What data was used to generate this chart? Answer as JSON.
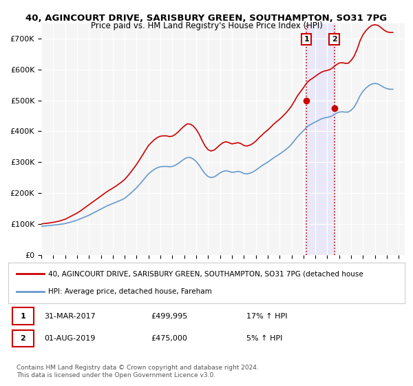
{
  "title": "40, AGINCOURT DRIVE, SARISBURY GREEN, SOUTHAMPTON, SO31 7PG",
  "subtitle": "Price paid vs. HM Land Registry's House Price Index (HPI)",
  "ylabel": "",
  "ylim": [
    0,
    750000
  ],
  "yticks": [
    0,
    100000,
    200000,
    300000,
    400000,
    500000,
    600000,
    700000
  ],
  "ytick_labels": [
    "£0",
    "£100K",
    "£200K",
    "£300K",
    "£400K",
    "£500K",
    "£600K",
    "£700K"
  ],
  "background_color": "#ffffff",
  "plot_bg_color": "#f5f5f5",
  "grid_color": "#ffffff",
  "line1_color": "#cc0000",
  "line2_color": "#6699cc",
  "marker1_color": "#cc0000",
  "marker2_color": "#cc0000",
  "annotation_box_color": "#cc0000",
  "purchase1_date_label": "1",
  "purchase1_year": 2017.25,
  "purchase1_price": 499995,
  "purchase2_date_label": "2",
  "purchase2_year": 2019.58,
  "purchase2_price": 475000,
  "legend_line1": "40, AGINCOURT DRIVE, SARISBURY GREEN, SOUTHAMPTON, SO31 7PG (detached house",
  "legend_line2": "HPI: Average price, detached house, Fareham",
  "table_row1": "1    31-MAR-2017         £499,995        17% ↑ HPI",
  "table_row2": "2    01-AUG-2019         £475,000          5% ↑ HPI",
  "footer": "Contains HM Land Registry data © Crown copyright and database right 2024.\nThis data is licensed under the Open Government Licence v3.0.",
  "xmin": 1995.0,
  "xmax": 2025.5,
  "xtick_years": [
    1995,
    1996,
    1997,
    1998,
    1999,
    2000,
    2001,
    2002,
    2003,
    2004,
    2005,
    2006,
    2007,
    2008,
    2009,
    2010,
    2011,
    2012,
    2013,
    2014,
    2015,
    2016,
    2017,
    2018,
    2019,
    2020,
    2021,
    2022,
    2023,
    2024,
    2025
  ],
  "hpi_years": [
    1995.0,
    1995.25,
    1995.5,
    1995.75,
    1996.0,
    1996.25,
    1996.5,
    1996.75,
    1997.0,
    1997.25,
    1997.5,
    1997.75,
    1998.0,
    1998.25,
    1998.5,
    1998.75,
    1999.0,
    1999.25,
    1999.5,
    1999.75,
    2000.0,
    2000.25,
    2000.5,
    2000.75,
    2001.0,
    2001.25,
    2001.5,
    2001.75,
    2002.0,
    2002.25,
    2002.5,
    2002.75,
    2003.0,
    2003.25,
    2003.5,
    2003.75,
    2004.0,
    2004.25,
    2004.5,
    2004.75,
    2005.0,
    2005.25,
    2005.5,
    2005.75,
    2006.0,
    2006.25,
    2006.5,
    2006.75,
    2007.0,
    2007.25,
    2007.5,
    2007.75,
    2008.0,
    2008.25,
    2008.5,
    2008.75,
    2009.0,
    2009.25,
    2009.5,
    2009.75,
    2010.0,
    2010.25,
    2010.5,
    2010.75,
    2011.0,
    2011.25,
    2011.5,
    2011.75,
    2012.0,
    2012.25,
    2012.5,
    2012.75,
    2013.0,
    2013.25,
    2013.5,
    2013.75,
    2014.0,
    2014.25,
    2014.5,
    2014.75,
    2015.0,
    2015.25,
    2015.5,
    2015.75,
    2016.0,
    2016.25,
    2016.5,
    2016.75,
    2017.0,
    2017.25,
    2017.5,
    2017.75,
    2018.0,
    2018.25,
    2018.5,
    2018.75,
    2019.0,
    2019.25,
    2019.5,
    2019.75,
    2020.0,
    2020.25,
    2020.5,
    2020.75,
    2021.0,
    2021.25,
    2021.5,
    2021.75,
    2022.0,
    2022.25,
    2022.5,
    2022.75,
    2023.0,
    2023.25,
    2023.5,
    2023.75,
    2024.0,
    2024.25,
    2024.5
  ],
  "hpi_values": [
    92000,
    93000,
    94000,
    95000,
    96000,
    97000,
    98000,
    99500,
    101000,
    103500,
    106000,
    109000,
    112000,
    116000,
    120000,
    124000,
    128000,
    133000,
    138000,
    143000,
    148000,
    153000,
    158000,
    162000,
    166000,
    170000,
    174000,
    178000,
    183000,
    191000,
    199000,
    208000,
    217000,
    228000,
    239000,
    251000,
    262000,
    270000,
    277000,
    282000,
    285000,
    286000,
    286000,
    285000,
    286000,
    290000,
    296000,
    303000,
    310000,
    315000,
    315000,
    310000,
    302000,
    290000,
    275000,
    262000,
    253000,
    250000,
    252000,
    258000,
    265000,
    270000,
    272000,
    270000,
    267000,
    268000,
    270000,
    268000,
    263000,
    262000,
    264000,
    268000,
    274000,
    281000,
    288000,
    294000,
    300000,
    307000,
    314000,
    320000,
    326000,
    333000,
    340000,
    348000,
    358000,
    370000,
    382000,
    392000,
    402000,
    412000,
    420000,
    425000,
    430000,
    435000,
    440000,
    443000,
    445000,
    447000,
    452000,
    458000,
    462000,
    463000,
    462000,
    462000,
    468000,
    478000,
    495000,
    515000,
    530000,
    540000,
    548000,
    553000,
    555000,
    553000,
    548000,
    542000,
    538000,
    536000,
    536000
  ],
  "red_years": [
    1995.0,
    1995.25,
    1995.5,
    1995.75,
    1996.0,
    1996.25,
    1996.5,
    1996.75,
    1997.0,
    1997.25,
    1997.5,
    1997.75,
    1998.0,
    1998.25,
    1998.5,
    1998.75,
    1999.0,
    1999.25,
    1999.5,
    1999.75,
    2000.0,
    2000.25,
    2000.5,
    2000.75,
    2001.0,
    2001.25,
    2001.5,
    2001.75,
    2002.0,
    2002.25,
    2002.5,
    2002.75,
    2003.0,
    2003.25,
    2003.5,
    2003.75,
    2004.0,
    2004.25,
    2004.5,
    2004.75,
    2005.0,
    2005.25,
    2005.5,
    2005.75,
    2006.0,
    2006.25,
    2006.5,
    2006.75,
    2007.0,
    2007.25,
    2007.5,
    2007.75,
    2008.0,
    2008.25,
    2008.5,
    2008.75,
    2009.0,
    2009.25,
    2009.5,
    2009.75,
    2010.0,
    2010.25,
    2010.5,
    2010.75,
    2011.0,
    2011.25,
    2011.5,
    2011.75,
    2012.0,
    2012.25,
    2012.5,
    2012.75,
    2013.0,
    2013.25,
    2013.5,
    2013.75,
    2014.0,
    2014.25,
    2014.5,
    2014.75,
    2015.0,
    2015.25,
    2015.5,
    2015.75,
    2016.0,
    2016.25,
    2016.5,
    2016.75,
    2017.0,
    2017.25,
    2017.5,
    2017.75,
    2018.0,
    2018.25,
    2018.5,
    2018.75,
    2019.0,
    2019.25,
    2019.5,
    2019.75,
    2020.0,
    2020.25,
    2020.5,
    2020.75,
    2021.0,
    2021.25,
    2021.5,
    2021.75,
    2022.0,
    2022.25,
    2022.5,
    2022.75,
    2023.0,
    2023.25,
    2023.5,
    2023.75,
    2024.0,
    2024.25,
    2024.5
  ],
  "red_values": [
    100000,
    101000,
    102000,
    103500,
    105000,
    107000,
    109000,
    112000,
    115000,
    120000,
    125000,
    130000,
    135000,
    141000,
    148000,
    155000,
    162000,
    169000,
    176000,
    183000,
    190000,
    197000,
    204000,
    210000,
    216000,
    222000,
    229000,
    236000,
    244000,
    255000,
    267000,
    280000,
    293000,
    308000,
    323000,
    339000,
    354000,
    364000,
    373000,
    380000,
    384000,
    385000,
    385000,
    383000,
    384000,
    390000,
    398000,
    408000,
    417000,
    424000,
    423000,
    417000,
    406000,
    390000,
    370000,
    352000,
    340000,
    336000,
    339000,
    347000,
    356000,
    363000,
    366000,
    363000,
    359000,
    361000,
    363000,
    360000,
    354000,
    352000,
    355000,
    360000,
    368000,
    378000,
    387000,
    396000,
    404000,
    413000,
    423000,
    431000,
    439000,
    448000,
    458000,
    469000,
    482000,
    498000,
    515000,
    528000,
    541000,
    555000,
    565000,
    571000,
    578000,
    585000,
    591000,
    595000,
    597000,
    600000,
    607000,
    615000,
    621000,
    622000,
    620000,
    620000,
    629000,
    643000,
    665000,
    693000,
    713000,
    726000,
    736000,
    743000,
    745000,
    743000,
    736000,
    728000,
    722000,
    720000,
    720000
  ],
  "vline1_x": 2017.25,
  "vline2_x": 2019.58,
  "vline_color": "#cc0000",
  "vline_style": "dotted",
  "shade_xmin": 2017.25,
  "shade_xmax": 2019.58,
  "shade_color": "#e8e8f8"
}
